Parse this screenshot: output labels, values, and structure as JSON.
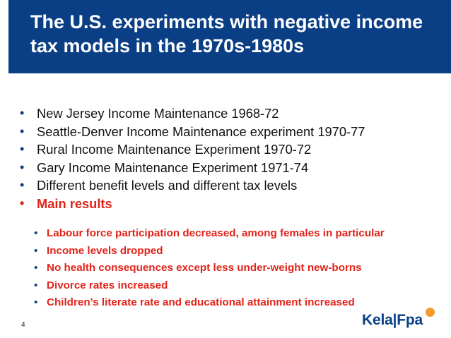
{
  "slide": {
    "title_line1": "The U.S. experiments with negative income",
    "title_line2": "tax models in the 1970s-1980s",
    "page_number": "4",
    "logo": "Kela|Fpa"
  },
  "bullets": [
    "New Jersey Income Maintenance 1968-72",
    "Seattle-Denver Income Maintenance experiment 1970-77",
    "Rural Income Maintenance Experiment 1970-72",
    "Gary Income Maintenance Experiment 1971-74",
    "Different benefit levels and different tax levels",
    "Main results"
  ],
  "sub_bullets": [
    "Labour force participation decreased, among females in particular",
    "Income levels dropped",
    "No health consequences except less under-weight new-borns",
    "Divorce rates increased",
    "Children’s literate rate and educational attainment increased"
  ],
  "colors": {
    "header_bg": "#0a3f86",
    "highlight": "#e2231a",
    "logo_accent": "#f29c2e"
  }
}
